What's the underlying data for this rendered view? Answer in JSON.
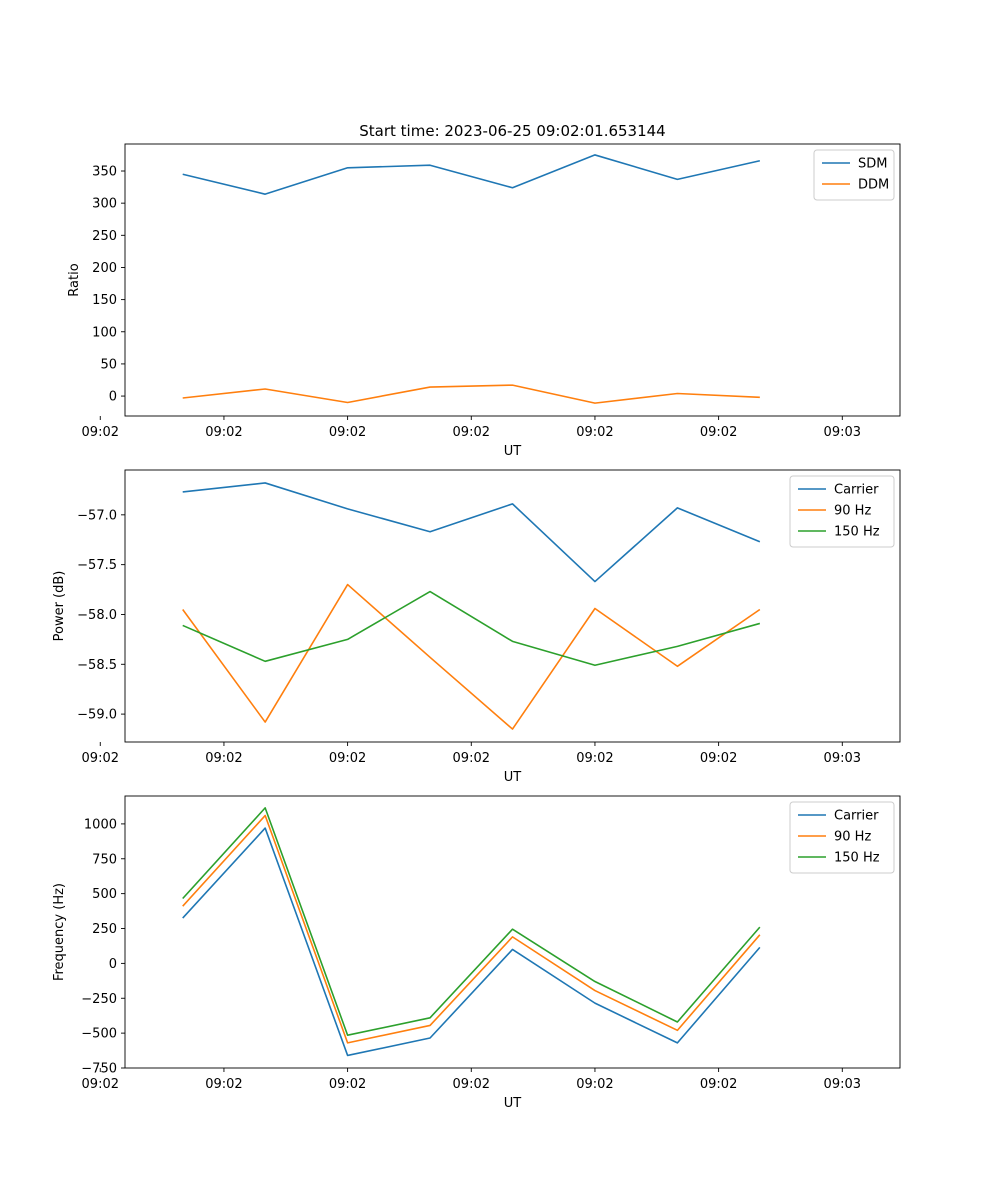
{
  "figure_title": "Start time: 2023-06-25 09:02:01.653144",
  "chart_data": [
    {
      "type": "line",
      "title": "Start time: 2023-06-25 09:02:01.653144",
      "xlabel": "UT",
      "ylabel": "Ratio",
      "x_tick_labels": [
        "09:02",
        "09:02",
        "09:02",
        "09:02",
        "09:02",
        "09:02",
        "09:03"
      ],
      "x_points": [
        1,
        2,
        3,
        4,
        5,
        6,
        7,
        8
      ],
      "xlim": [
        0.3,
        9.7
      ],
      "ylim": [
        -31,
        392
      ],
      "y_ticks": [
        0,
        50,
        100,
        150,
        200,
        250,
        300,
        350
      ],
      "legend_position": "top-right",
      "series": [
        {
          "name": "SDM",
          "color": "#1f77b4",
          "values": [
            345,
            314,
            355,
            359,
            324,
            375,
            337,
            366
          ]
        },
        {
          "name": "DDM",
          "color": "#ff7f0e",
          "values": [
            -3,
            11,
            -10,
            14,
            17,
            -11,
            4,
            -2
          ]
        }
      ]
    },
    {
      "type": "line",
      "title": "",
      "xlabel": "UT",
      "ylabel": "Power (dB)",
      "x_tick_labels": [
        "09:02",
        "09:02",
        "09:02",
        "09:02",
        "09:02",
        "09:02",
        "09:03"
      ],
      "x_points": [
        1,
        2,
        3,
        4,
        5,
        6,
        7,
        8
      ],
      "xlim": [
        0.3,
        9.7
      ],
      "ylim": [
        -59.28,
        -56.55
      ],
      "y_ticks": [
        -59.0,
        -58.5,
        -58.0,
        -57.5,
        -57.0
      ],
      "legend_position": "top-right",
      "series": [
        {
          "name": "Carrier",
          "color": "#1f77b4",
          "values": [
            -56.77,
            -56.68,
            -56.94,
            -57.17,
            -56.89,
            -57.67,
            -56.93,
            -57.27
          ]
        },
        {
          "name": "90 Hz",
          "color": "#ff7f0e",
          "values": [
            -57.95,
            -59.08,
            -57.7,
            -58.43,
            -59.15,
            -57.94,
            -58.52,
            -57.95
          ]
        },
        {
          "name": "150 Hz",
          "color": "#2ca02c",
          "values": [
            -58.11,
            -58.47,
            -58.25,
            -57.77,
            -58.27,
            -58.51,
            -58.32,
            -58.09
          ]
        }
      ]
    },
    {
      "type": "line",
      "title": "",
      "xlabel": "UT",
      "ylabel": "Frequency (Hz)",
      "x_tick_labels": [
        "09:02",
        "09:02",
        "09:02",
        "09:02",
        "09:02",
        "09:02",
        "09:03"
      ],
      "x_points": [
        1,
        2,
        3,
        4,
        5,
        6,
        7,
        8
      ],
      "xlim": [
        0.3,
        9.7
      ],
      "ylim": [
        -750,
        1200
      ],
      "y_ticks": [
        -750,
        -500,
        -250,
        0,
        250,
        500,
        750,
        1000
      ],
      "legend_position": "top-right",
      "series": [
        {
          "name": "Carrier",
          "color": "#1f77b4",
          "values": [
            325,
            970,
            -660,
            -535,
            100,
            -285,
            -570,
            115
          ]
        },
        {
          "name": "90 Hz",
          "color": "#ff7f0e",
          "values": [
            410,
            1060,
            -570,
            -445,
            190,
            -195,
            -480,
            205
          ]
        },
        {
          "name": "150 Hz",
          "color": "#2ca02c",
          "values": [
            465,
            1115,
            -515,
            -390,
            245,
            -130,
            -420,
            260
          ]
        }
      ]
    }
  ]
}
